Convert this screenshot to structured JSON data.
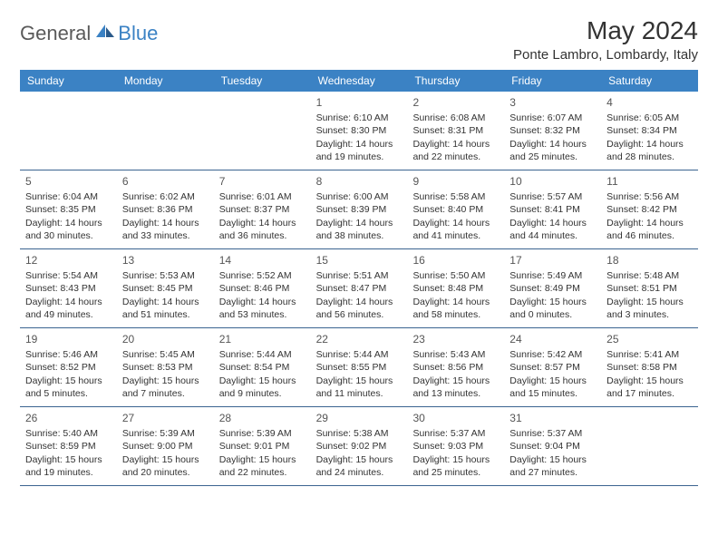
{
  "logo": {
    "general": "General",
    "blue": "Blue"
  },
  "title": "May 2024",
  "location": "Ponte Lambro, Lombardy, Italy",
  "colors": {
    "header_bg": "#3b82c4",
    "header_text": "#ffffff",
    "row_border": "#3b6490",
    "text": "#333333",
    "logo_gray": "#5a5a5a",
    "logo_blue": "#3b82c4"
  },
  "weekdays": [
    "Sunday",
    "Monday",
    "Tuesday",
    "Wednesday",
    "Thursday",
    "Friday",
    "Saturday"
  ],
  "weeks": [
    [
      null,
      null,
      null,
      {
        "n": "1",
        "sr": "6:10 AM",
        "ss": "8:30 PM",
        "dl": "14 hours and 19 minutes."
      },
      {
        "n": "2",
        "sr": "6:08 AM",
        "ss": "8:31 PM",
        "dl": "14 hours and 22 minutes."
      },
      {
        "n": "3",
        "sr": "6:07 AM",
        "ss": "8:32 PM",
        "dl": "14 hours and 25 minutes."
      },
      {
        "n": "4",
        "sr": "6:05 AM",
        "ss": "8:34 PM",
        "dl": "14 hours and 28 minutes."
      }
    ],
    [
      {
        "n": "5",
        "sr": "6:04 AM",
        "ss": "8:35 PM",
        "dl": "14 hours and 30 minutes."
      },
      {
        "n": "6",
        "sr": "6:02 AM",
        "ss": "8:36 PM",
        "dl": "14 hours and 33 minutes."
      },
      {
        "n": "7",
        "sr": "6:01 AM",
        "ss": "8:37 PM",
        "dl": "14 hours and 36 minutes."
      },
      {
        "n": "8",
        "sr": "6:00 AM",
        "ss": "8:39 PM",
        "dl": "14 hours and 38 minutes."
      },
      {
        "n": "9",
        "sr": "5:58 AM",
        "ss": "8:40 PM",
        "dl": "14 hours and 41 minutes."
      },
      {
        "n": "10",
        "sr": "5:57 AM",
        "ss": "8:41 PM",
        "dl": "14 hours and 44 minutes."
      },
      {
        "n": "11",
        "sr": "5:56 AM",
        "ss": "8:42 PM",
        "dl": "14 hours and 46 minutes."
      }
    ],
    [
      {
        "n": "12",
        "sr": "5:54 AM",
        "ss": "8:43 PM",
        "dl": "14 hours and 49 minutes."
      },
      {
        "n": "13",
        "sr": "5:53 AM",
        "ss": "8:45 PM",
        "dl": "14 hours and 51 minutes."
      },
      {
        "n": "14",
        "sr": "5:52 AM",
        "ss": "8:46 PM",
        "dl": "14 hours and 53 minutes."
      },
      {
        "n": "15",
        "sr": "5:51 AM",
        "ss": "8:47 PM",
        "dl": "14 hours and 56 minutes."
      },
      {
        "n": "16",
        "sr": "5:50 AM",
        "ss": "8:48 PM",
        "dl": "14 hours and 58 minutes."
      },
      {
        "n": "17",
        "sr": "5:49 AM",
        "ss": "8:49 PM",
        "dl": "15 hours and 0 minutes."
      },
      {
        "n": "18",
        "sr": "5:48 AM",
        "ss": "8:51 PM",
        "dl": "15 hours and 3 minutes."
      }
    ],
    [
      {
        "n": "19",
        "sr": "5:46 AM",
        "ss": "8:52 PM",
        "dl": "15 hours and 5 minutes."
      },
      {
        "n": "20",
        "sr": "5:45 AM",
        "ss": "8:53 PM",
        "dl": "15 hours and 7 minutes."
      },
      {
        "n": "21",
        "sr": "5:44 AM",
        "ss": "8:54 PM",
        "dl": "15 hours and 9 minutes."
      },
      {
        "n": "22",
        "sr": "5:44 AM",
        "ss": "8:55 PM",
        "dl": "15 hours and 11 minutes."
      },
      {
        "n": "23",
        "sr": "5:43 AM",
        "ss": "8:56 PM",
        "dl": "15 hours and 13 minutes."
      },
      {
        "n": "24",
        "sr": "5:42 AM",
        "ss": "8:57 PM",
        "dl": "15 hours and 15 minutes."
      },
      {
        "n": "25",
        "sr": "5:41 AM",
        "ss": "8:58 PM",
        "dl": "15 hours and 17 minutes."
      }
    ],
    [
      {
        "n": "26",
        "sr": "5:40 AM",
        "ss": "8:59 PM",
        "dl": "15 hours and 19 minutes."
      },
      {
        "n": "27",
        "sr": "5:39 AM",
        "ss": "9:00 PM",
        "dl": "15 hours and 20 minutes."
      },
      {
        "n": "28",
        "sr": "5:39 AM",
        "ss": "9:01 PM",
        "dl": "15 hours and 22 minutes."
      },
      {
        "n": "29",
        "sr": "5:38 AM",
        "ss": "9:02 PM",
        "dl": "15 hours and 24 minutes."
      },
      {
        "n": "30",
        "sr": "5:37 AM",
        "ss": "9:03 PM",
        "dl": "15 hours and 25 minutes."
      },
      {
        "n": "31",
        "sr": "5:37 AM",
        "ss": "9:04 PM",
        "dl": "15 hours and 27 minutes."
      },
      null
    ]
  ],
  "labels": {
    "sunrise": "Sunrise:",
    "sunset": "Sunset:",
    "daylight": "Daylight:"
  }
}
